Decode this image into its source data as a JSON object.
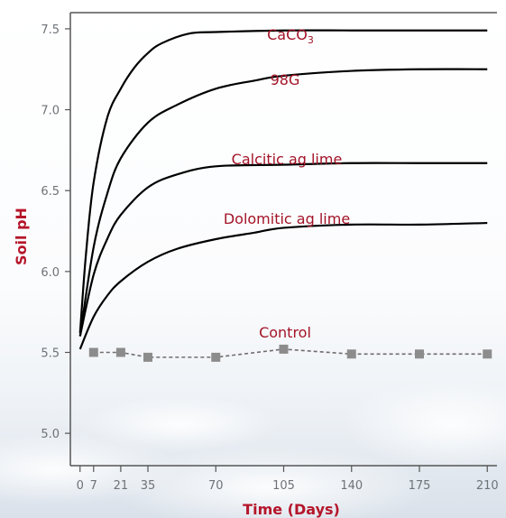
{
  "chart_data": {
    "type": "line",
    "title": "",
    "xlabel": "Time (Days)",
    "ylabel": "Soil pH",
    "x_ticks": [
      0,
      7,
      21,
      35,
      70,
      105,
      140,
      175,
      210
    ],
    "y_ticks": [
      5.0,
      5.5,
      6.0,
      6.5,
      7.0,
      7.5
    ],
    "xlim": [
      -5,
      215
    ],
    "ylim": [
      4.8,
      7.6
    ],
    "grid": false,
    "legend": "none",
    "series": [
      {
        "name": "CaCO",
        "name_sub": "3",
        "color": "#000000",
        "style": "solid",
        "markers": false,
        "x": [
          0,
          3,
          7,
          14,
          21,
          28,
          35,
          42,
          56,
          70,
          105,
          140,
          175,
          210
        ],
        "y": [
          5.62,
          6.1,
          6.55,
          6.95,
          7.13,
          7.26,
          7.35,
          7.41,
          7.47,
          7.48,
          7.49,
          7.49,
          7.49,
          7.49
        ]
      },
      {
        "name": "98G",
        "color": "#000000",
        "style": "solid",
        "markers": false,
        "x": [
          0,
          7,
          14,
          21,
          35,
          50,
          70,
          90,
          105,
          140,
          175,
          210
        ],
        "y": [
          5.6,
          6.15,
          6.48,
          6.7,
          6.92,
          7.03,
          7.13,
          7.18,
          7.21,
          7.24,
          7.25,
          7.25
        ]
      },
      {
        "name": "Calcitic ag lime",
        "color": "#000000",
        "style": "solid",
        "markers": false,
        "x": [
          0,
          7,
          14,
          21,
          35,
          50,
          70,
          105,
          140,
          175,
          210
        ],
        "y": [
          5.6,
          5.98,
          6.2,
          6.35,
          6.52,
          6.6,
          6.65,
          6.66,
          6.67,
          6.67,
          6.67
        ]
      },
      {
        "name": "Dolomitic ag lime",
        "color": "#000000",
        "style": "solid",
        "markers": false,
        "x": [
          0,
          7,
          14,
          21,
          35,
          50,
          70,
          90,
          105,
          140,
          175,
          210
        ],
        "y": [
          5.52,
          5.72,
          5.85,
          5.94,
          6.06,
          6.14,
          6.2,
          6.24,
          6.27,
          6.29,
          6.29,
          6.3
        ]
      },
      {
        "name": "Control",
        "color": "#6e6e6e",
        "marker_color": "#8c8c8c",
        "style": "dashed",
        "markers": true,
        "x": [
          7,
          21,
          35,
          70,
          105,
          140,
          175,
          210
        ],
        "y": [
          5.5,
          5.5,
          5.47,
          5.47,
          5.52,
          5.49,
          5.49,
          5.49
        ]
      }
    ]
  }
}
